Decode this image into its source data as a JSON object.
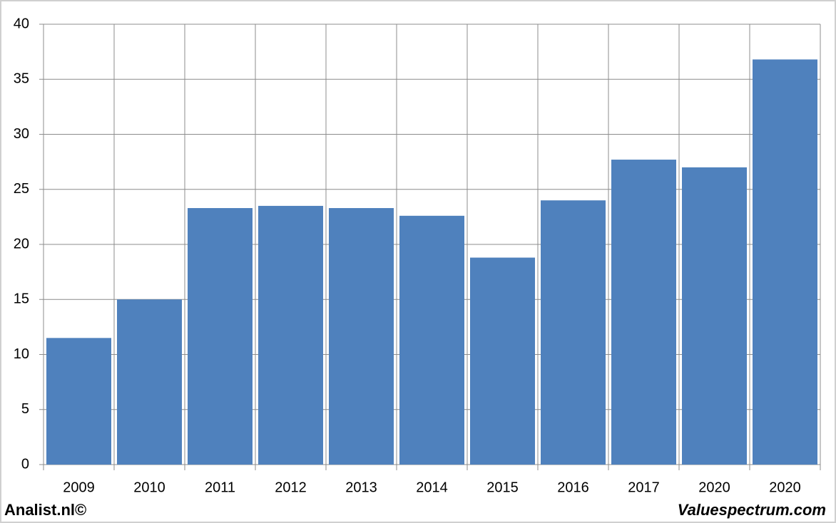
{
  "chart_data": {
    "type": "bar",
    "categories": [
      "2009",
      "2010",
      "2011",
      "2012",
      "2013",
      "2014",
      "2015",
      "2016",
      "2017",
      "2020",
      "2020"
    ],
    "values": [
      11.5,
      15.0,
      23.3,
      23.5,
      23.3,
      22.6,
      18.8,
      24.0,
      27.7,
      27.0,
      36.8
    ],
    "color": "#4f81bd",
    "ylim": [
      0,
      40
    ],
    "yticks": [
      0,
      5,
      10,
      15,
      20,
      25,
      30,
      35,
      40
    ],
    "grid": true,
    "source_left": "Analist.nl©",
    "source_right": "Valuespectrum.com"
  }
}
